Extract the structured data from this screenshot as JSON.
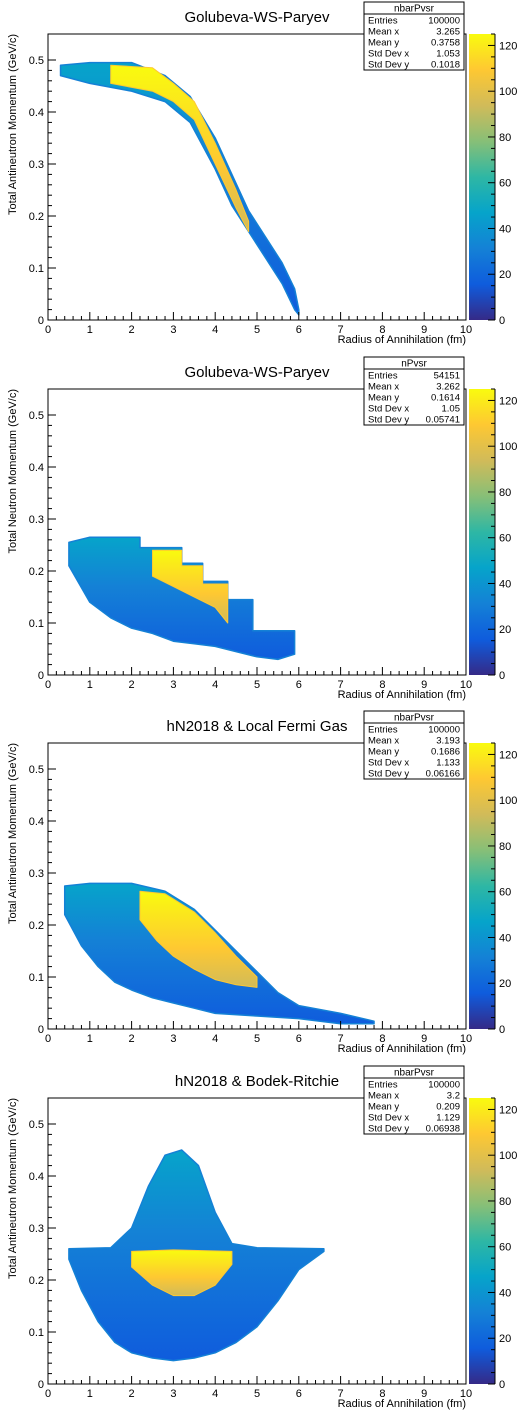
{
  "colorscale": [
    "#352a87",
    "#0f5cdd",
    "#1481d6",
    "#06a4ca",
    "#2eb7a4",
    "#87bf77",
    "#d1bb59",
    "#fec832",
    "#f9fb0e"
  ],
  "chart_data": [
    {
      "type": "heatmap",
      "title": "Golubeva-WS-Paryev",
      "xlabel": "Radius of Annihilation (fm)",
      "ylabel": "Total Antineutron Momentum (GeV/c)",
      "xlim": [
        0,
        10
      ],
      "ylim": [
        0,
        0.55
      ],
      "x_ticks": [
        "0",
        "1",
        "2",
        "3",
        "4",
        "5",
        "6",
        "7",
        "8",
        "9",
        "10"
      ],
      "y_ticks": [
        "0",
        "0.1",
        "0.2",
        "0.3",
        "0.4",
        "0.5"
      ],
      "z_ticks": [
        "0",
        "20",
        "40",
        "60",
        "80",
        "100",
        "120"
      ],
      "z_range": [
        0,
        125
      ],
      "stats": {
        "name": "nbarPvsr",
        "rows": [
          [
            "Entries",
            "100000"
          ],
          [
            "Mean x",
            "3.265"
          ],
          [
            "Mean y",
            "0.3758"
          ],
          [
            "Std Dev x",
            "1.053"
          ],
          [
            "Std Dev y",
            "0.1018"
          ]
        ]
      },
      "region": {
        "upper": [
          [
            0.3,
            0.49
          ],
          [
            1.0,
            0.495
          ],
          [
            2.0,
            0.495
          ],
          [
            2.8,
            0.47
          ],
          [
            3.4,
            0.43
          ],
          [
            4.0,
            0.35
          ],
          [
            4.4,
            0.28
          ],
          [
            4.8,
            0.21
          ],
          [
            5.2,
            0.16
          ],
          [
            5.6,
            0.11
          ],
          [
            5.9,
            0.06
          ],
          [
            6.0,
            0.02
          ]
        ],
        "lower": [
          [
            0.3,
            0.47
          ],
          [
            1.0,
            0.455
          ],
          [
            2.0,
            0.44
          ],
          [
            2.8,
            0.42
          ],
          [
            3.4,
            0.38
          ],
          [
            4.0,
            0.29
          ],
          [
            4.4,
            0.22
          ],
          [
            4.8,
            0.17
          ],
          [
            5.2,
            0.12
          ],
          [
            5.6,
            0.07
          ],
          [
            5.9,
            0.02
          ],
          [
            6.0,
            0.01
          ]
        ]
      },
      "hot": {
        "upper": [
          [
            1.5,
            0.49
          ],
          [
            2.5,
            0.485
          ],
          [
            3.0,
            0.455
          ],
          [
            3.5,
            0.42
          ],
          [
            4.0,
            0.34
          ],
          [
            4.5,
            0.25
          ],
          [
            4.8,
            0.19
          ]
        ],
        "lower": [
          [
            1.5,
            0.455
          ],
          [
            2.5,
            0.44
          ],
          [
            3.0,
            0.42
          ],
          [
            3.5,
            0.385
          ],
          [
            4.0,
            0.3
          ],
          [
            4.5,
            0.215
          ],
          [
            4.8,
            0.17
          ]
        ]
      }
    },
    {
      "type": "heatmap",
      "title": "Golubeva-WS-Paryev",
      "xlabel": "Radius of Annihilation (fm)",
      "ylabel": "Total Neutron Momentum (GeV/c)",
      "xlim": [
        0,
        10
      ],
      "ylim": [
        0,
        0.55
      ],
      "x_ticks": [
        "0",
        "1",
        "2",
        "3",
        "4",
        "5",
        "6",
        "7",
        "8",
        "9",
        "10"
      ],
      "y_ticks": [
        "0",
        "0.1",
        "0.2",
        "0.3",
        "0.4",
        "0.5"
      ],
      "z_ticks": [
        "0",
        "20",
        "40",
        "60",
        "80",
        "100",
        "120"
      ],
      "z_range": [
        0,
        125
      ],
      "stats": {
        "name": "nPvsr",
        "rows": [
          [
            "Entries",
            "54151"
          ],
          [
            "Mean x",
            "3.262"
          ],
          [
            "Mean y",
            "0.1614"
          ],
          [
            "Std Dev x",
            "1.05"
          ],
          [
            "Std Dev y",
            "0.05741"
          ]
        ]
      },
      "region": {
        "upper": [
          [
            0.5,
            0.255
          ],
          [
            1.0,
            0.265
          ],
          [
            2.2,
            0.265
          ],
          [
            2.2,
            0.245
          ],
          [
            3.2,
            0.245
          ],
          [
            3.2,
            0.215
          ],
          [
            3.7,
            0.215
          ],
          [
            3.7,
            0.18
          ],
          [
            4.3,
            0.18
          ],
          [
            4.3,
            0.145
          ],
          [
            4.9,
            0.145
          ],
          [
            4.9,
            0.085
          ],
          [
            5.9,
            0.085
          ],
          [
            5.9,
            0.055
          ]
        ],
        "lower": [
          [
            0.5,
            0.21
          ],
          [
            1.0,
            0.14
          ],
          [
            1.5,
            0.11
          ],
          [
            2.0,
            0.09
          ],
          [
            2.5,
            0.08
          ],
          [
            3.0,
            0.065
          ],
          [
            3.5,
            0.06
          ],
          [
            4.0,
            0.055
          ],
          [
            4.5,
            0.045
          ],
          [
            5.0,
            0.035
          ],
          [
            5.5,
            0.03
          ],
          [
            5.9,
            0.04
          ]
        ]
      },
      "hot": {
        "upper": [
          [
            2.5,
            0.24
          ],
          [
            3.2,
            0.24
          ],
          [
            3.2,
            0.21
          ],
          [
            3.7,
            0.21
          ],
          [
            3.7,
            0.175
          ],
          [
            4.3,
            0.175
          ],
          [
            4.3,
            0.14
          ]
        ],
        "lower": [
          [
            2.5,
            0.19
          ],
          [
            3.0,
            0.17
          ],
          [
            3.5,
            0.15
          ],
          [
            4.0,
            0.13
          ],
          [
            4.3,
            0.1
          ]
        ]
      }
    },
    {
      "type": "heatmap",
      "title": "hN2018 & Local Fermi Gas",
      "xlabel": "Radius of Annihilation (fm)",
      "ylabel": "Total Antineutron Momentum (GeV/c)",
      "xlim": [
        0,
        10
      ],
      "ylim": [
        0,
        0.55
      ],
      "x_ticks": [
        "0",
        "1",
        "2",
        "3",
        "4",
        "5",
        "6",
        "7",
        "8",
        "9",
        "10"
      ],
      "y_ticks": [
        "0",
        "0.1",
        "0.2",
        "0.3",
        "0.4",
        "0.5"
      ],
      "z_ticks": [
        "0",
        "20",
        "40",
        "60",
        "80",
        "100",
        "120"
      ],
      "z_range": [
        0,
        125
      ],
      "stats": {
        "name": "nbarPvsr",
        "rows": [
          [
            "Entries",
            "100000"
          ],
          [
            "Mean x",
            "3.193"
          ],
          [
            "Mean y",
            "0.1686"
          ],
          [
            "Std Dev x",
            "1.133"
          ],
          [
            "Std Dev y",
            "0.06166"
          ]
        ]
      },
      "region": {
        "upper": [
          [
            0.4,
            0.275
          ],
          [
            1.0,
            0.28
          ],
          [
            2.0,
            0.28
          ],
          [
            2.8,
            0.265
          ],
          [
            3.5,
            0.23
          ],
          [
            4.0,
            0.19
          ],
          [
            4.5,
            0.15
          ],
          [
            5.0,
            0.11
          ],
          [
            5.5,
            0.07
          ],
          [
            6.0,
            0.045
          ],
          [
            7.0,
            0.03
          ],
          [
            7.8,
            0.015
          ]
        ],
        "lower": [
          [
            0.4,
            0.22
          ],
          [
            0.8,
            0.16
          ],
          [
            1.2,
            0.12
          ],
          [
            1.6,
            0.09
          ],
          [
            2.0,
            0.075
          ],
          [
            2.5,
            0.06
          ],
          [
            3.0,
            0.05
          ],
          [
            3.5,
            0.04
          ],
          [
            4.0,
            0.03
          ],
          [
            5.0,
            0.025
          ],
          [
            6.0,
            0.02
          ],
          [
            7.0,
            0.01
          ],
          [
            7.8,
            0.01
          ]
        ]
      },
      "hot": {
        "upper": [
          [
            2.2,
            0.265
          ],
          [
            2.8,
            0.26
          ],
          [
            3.5,
            0.225
          ],
          [
            4.0,
            0.185
          ],
          [
            4.5,
            0.14
          ],
          [
            5.0,
            0.1
          ]
        ],
        "lower": [
          [
            2.2,
            0.21
          ],
          [
            2.6,
            0.17
          ],
          [
            3.0,
            0.14
          ],
          [
            3.5,
            0.115
          ],
          [
            4.0,
            0.095
          ],
          [
            4.5,
            0.085
          ],
          [
            5.0,
            0.08
          ]
        ]
      }
    },
    {
      "type": "heatmap",
      "title": "hN2018 & Bodek-Ritchie",
      "xlabel": "Radius of Annihilation (fm)",
      "ylabel": "Total Antineutron Momentum (GeV/c)",
      "xlim": [
        0,
        10
      ],
      "ylim": [
        0,
        0.55
      ],
      "x_ticks": [
        "0",
        "1",
        "2",
        "3",
        "4",
        "5",
        "6",
        "7",
        "8",
        "9",
        "10"
      ],
      "y_ticks": [
        "0",
        "0.1",
        "0.2",
        "0.3",
        "0.4",
        "0.5"
      ],
      "z_ticks": [
        "0",
        "20",
        "40",
        "60",
        "80",
        "100",
        "120"
      ],
      "z_range": [
        0,
        125
      ],
      "stats": {
        "name": "nbarPvsr",
        "rows": [
          [
            "Entries",
            "100000"
          ],
          [
            "Mean x",
            "3.2"
          ],
          [
            "Mean y",
            "0.209"
          ],
          [
            "Std Dev x",
            "1.129"
          ],
          [
            "Std Dev y",
            "0.06938"
          ]
        ]
      },
      "region": {
        "upper": [
          [
            0.5,
            0.26
          ],
          [
            1.5,
            0.262
          ],
          [
            2.0,
            0.3
          ],
          [
            2.4,
            0.38
          ],
          [
            2.8,
            0.44
          ],
          [
            3.2,
            0.45
          ],
          [
            3.6,
            0.42
          ],
          [
            4.0,
            0.33
          ],
          [
            4.4,
            0.27
          ],
          [
            5.0,
            0.262
          ],
          [
            6.6,
            0.26
          ]
        ],
        "lower": [
          [
            0.5,
            0.24
          ],
          [
            0.8,
            0.18
          ],
          [
            1.2,
            0.12
          ],
          [
            1.6,
            0.08
          ],
          [
            2.0,
            0.06
          ],
          [
            2.5,
            0.05
          ],
          [
            3.0,
            0.045
          ],
          [
            3.5,
            0.05
          ],
          [
            4.0,
            0.06
          ],
          [
            4.5,
            0.08
          ],
          [
            5.0,
            0.11
          ],
          [
            5.5,
            0.16
          ],
          [
            6.0,
            0.22
          ],
          [
            6.6,
            0.255
          ]
        ]
      },
      "hot": {
        "upper": [
          [
            2.0,
            0.255
          ],
          [
            3.0,
            0.258
          ],
          [
            4.4,
            0.255
          ]
        ],
        "lower": [
          [
            2.0,
            0.225
          ],
          [
            2.5,
            0.19
          ],
          [
            3.0,
            0.17
          ],
          [
            3.5,
            0.17
          ],
          [
            4.0,
            0.19
          ],
          [
            4.4,
            0.23
          ]
        ]
      }
    }
  ]
}
